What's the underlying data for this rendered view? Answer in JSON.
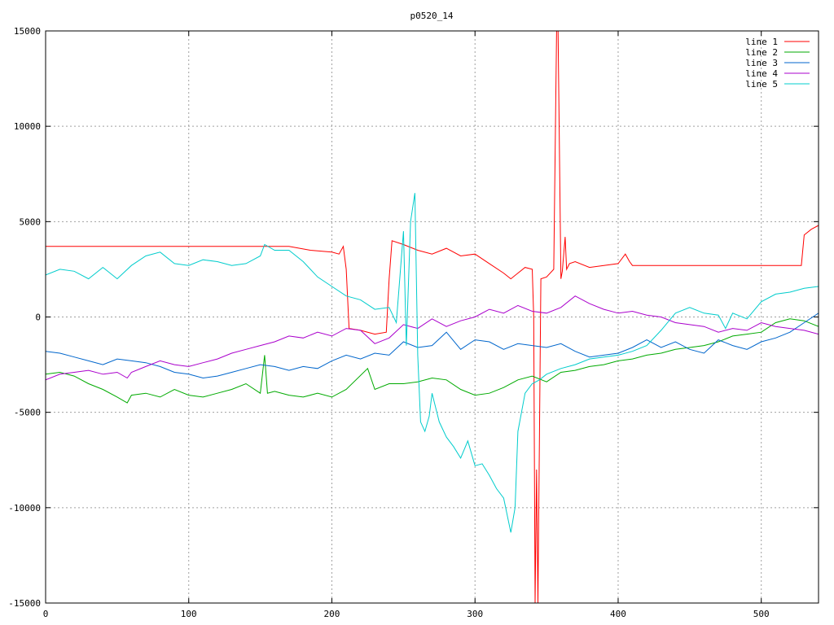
{
  "chart_data": {
    "type": "line",
    "title": "p0520_14",
    "xlabel": "",
    "ylabel": "",
    "xlim": [
      0,
      540
    ],
    "ylim": [
      -15000,
      15000
    ],
    "x_ticks": [
      0,
      100,
      200,
      300,
      400,
      500
    ],
    "y_ticks": [
      -15000,
      -10000,
      -5000,
      0,
      5000,
      10000,
      15000
    ],
    "grid": true,
    "legend_position": "top-right",
    "series": [
      {
        "name": "line 1",
        "color": "#ff0000",
        "x": [
          0,
          50,
          100,
          150,
          170,
          185,
          200,
          205,
          208,
          210,
          212,
          220,
          230,
          238,
          240,
          242,
          250,
          260,
          270,
          280,
          290,
          300,
          310,
          320,
          325,
          330,
          335,
          340,
          341,
          342,
          343,
          344,
          346,
          350,
          355,
          357,
          358,
          360,
          361,
          363,
          364,
          366,
          370,
          380,
          390,
          400,
          405,
          408,
          410,
          450,
          500,
          528,
          530,
          535,
          540
        ],
        "y": [
          3700,
          3700,
          3700,
          3700,
          3700,
          3500,
          3400,
          3300,
          3700,
          2500,
          -600,
          -700,
          -900,
          -800,
          2000,
          4000,
          3800,
          3500,
          3300,
          3600,
          3200,
          3300,
          2800,
          2300,
          2000,
          2300,
          2600,
          2500,
          0,
          -15000,
          -8000,
          -15000,
          2000,
          2100,
          2500,
          15000,
          15000,
          2000,
          2400,
          4200,
          2500,
          2800,
          2900,
          2600,
          2700,
          2800,
          3300,
          2900,
          2700,
          2700,
          2700,
          2700,
          4300,
          4600,
          4800
        ]
      },
      {
        "name": "line 2",
        "color": "#00aa00",
        "x": [
          0,
          10,
          20,
          30,
          40,
          50,
          57,
          60,
          70,
          80,
          90,
          100,
          110,
          120,
          130,
          140,
          150,
          153,
          155,
          160,
          170,
          180,
          190,
          200,
          210,
          225,
          230,
          240,
          250,
          260,
          270,
          280,
          290,
          300,
          310,
          320,
          330,
          340,
          350,
          360,
          370,
          380,
          390,
          400,
          410,
          420,
          430,
          440,
          450,
          460,
          470,
          480,
          490,
          500,
          510,
          520,
          530,
          540
        ],
        "y": [
          -3000,
          -2900,
          -3100,
          -3500,
          -3800,
          -4200,
          -4500,
          -4100,
          -4000,
          -4200,
          -3800,
          -4100,
          -4200,
          -4000,
          -3800,
          -3500,
          -4000,
          -2000,
          -4000,
          -3900,
          -4100,
          -4200,
          -4000,
          -4200,
          -3800,
          -2700,
          -3800,
          -3500,
          -3500,
          -3400,
          -3200,
          -3300,
          -3800,
          -4100,
          -4000,
          -3700,
          -3300,
          -3100,
          -3400,
          -2900,
          -2800,
          -2600,
          -2500,
          -2300,
          -2200,
          -2000,
          -1900,
          -1700,
          -1600,
          -1500,
          -1300,
          -1000,
          -900,
          -800,
          -300,
          -100,
          -200,
          -500
        ]
      },
      {
        "name": "line 3",
        "color": "#0066cc",
        "x": [
          0,
          10,
          20,
          30,
          40,
          50,
          60,
          70,
          80,
          90,
          100,
          110,
          120,
          130,
          140,
          150,
          160,
          170,
          180,
          190,
          200,
          210,
          220,
          230,
          240,
          250,
          260,
          270,
          280,
          290,
          300,
          310,
          320,
          330,
          340,
          350,
          360,
          370,
          380,
          390,
          400,
          410,
          420,
          430,
          440,
          450,
          460,
          470,
          480,
          490,
          500,
          510,
          520,
          530,
          540
        ],
        "y": [
          -1800,
          -1900,
          -2100,
          -2300,
          -2500,
          -2200,
          -2300,
          -2400,
          -2600,
          -2900,
          -3000,
          -3200,
          -3100,
          -2900,
          -2700,
          -2500,
          -2600,
          -2800,
          -2600,
          -2700,
          -2300,
          -2000,
          -2200,
          -1900,
          -2000,
          -1300,
          -1600,
          -1500,
          -800,
          -1700,
          -1200,
          -1300,
          -1700,
          -1400,
          -1500,
          -1600,
          -1400,
          -1800,
          -2100,
          -2000,
          -1900,
          -1600,
          -1200,
          -1600,
          -1300,
          -1700,
          -1900,
          -1200,
          -1500,
          -1700,
          -1300,
          -1100,
          -800,
          -300,
          200
        ]
      },
      {
        "name": "line 4",
        "color": "#aa00cc",
        "x": [
          0,
          10,
          20,
          30,
          40,
          50,
          57,
          60,
          70,
          80,
          90,
          100,
          110,
          120,
          130,
          140,
          150,
          160,
          170,
          180,
          190,
          200,
          210,
          220,
          230,
          240,
          250,
          260,
          270,
          280,
          290,
          300,
          310,
          320,
          330,
          340,
          350,
          360,
          370,
          380,
          390,
          400,
          410,
          420,
          430,
          440,
          450,
          460,
          470,
          480,
          490,
          500,
          510,
          520,
          530,
          540
        ],
        "y": [
          -3300,
          -3000,
          -2900,
          -2800,
          -3000,
          -2900,
          -3200,
          -2900,
          -2600,
          -2300,
          -2500,
          -2600,
          -2400,
          -2200,
          -1900,
          -1700,
          -1500,
          -1300,
          -1000,
          -1100,
          -800,
          -1000,
          -600,
          -700,
          -1400,
          -1100,
          -400,
          -600,
          -100,
          -500,
          -200,
          0,
          400,
          200,
          600,
          300,
          200,
          500,
          1100,
          700,
          400,
          200,
          300,
          100,
          0,
          -300,
          -400,
          -500,
          -800,
          -600,
          -700,
          -300,
          -500,
          -600,
          -700,
          -900
        ]
      },
      {
        "name": "line 5",
        "color": "#00cccc",
        "x": [
          0,
          10,
          20,
          30,
          40,
          50,
          60,
          70,
          80,
          90,
          100,
          110,
          120,
          130,
          140,
          150,
          153,
          160,
          170,
          180,
          190,
          200,
          210,
          220,
          230,
          240,
          245,
          250,
          252,
          255,
          258,
          260,
          262,
          265,
          268,
          270,
          275,
          280,
          285,
          290,
          295,
          300,
          305,
          310,
          315,
          320,
          325,
          328,
          330,
          335,
          340,
          345,
          350,
          360,
          370,
          380,
          390,
          400,
          410,
          420,
          430,
          440,
          450,
          460,
          470,
          475,
          480,
          490,
          500,
          510,
          520,
          530,
          540
        ],
        "y": [
          2200,
          2500,
          2400,
          2000,
          2600,
          2000,
          2700,
          3200,
          3400,
          2800,
          2700,
          3000,
          2900,
          2700,
          2800,
          3200,
          3800,
          3500,
          3500,
          2900,
          2100,
          1600,
          1100,
          900,
          400,
          500,
          -300,
          4500,
          -1500,
          5000,
          6500,
          -2000,
          -5500,
          -6000,
          -5200,
          -4000,
          -5500,
          -6300,
          -6800,
          -7400,
          -6500,
          -7800,
          -7700,
          -8300,
          -9000,
          -9500,
          -11300,
          -10000,
          -6000,
          -4000,
          -3500,
          -3300,
          -3000,
          -2700,
          -2500,
          -2200,
          -2100,
          -2000,
          -1800,
          -1500,
          -700,
          200,
          500,
          200,
          100,
          -600,
          200,
          -100,
          800,
          1200,
          1300,
          1500,
          1600
        ]
      }
    ]
  }
}
